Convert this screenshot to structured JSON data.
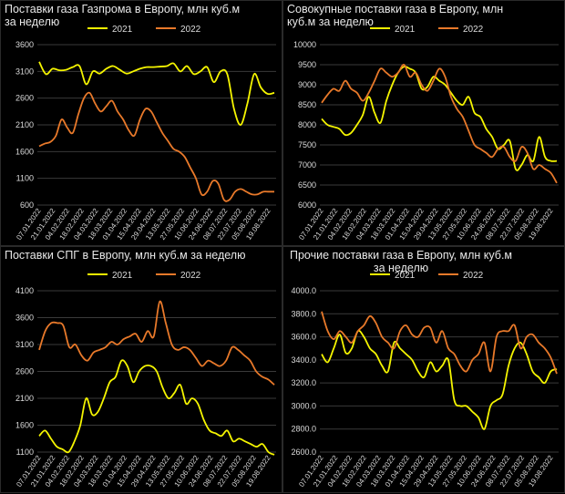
{
  "colors": {
    "y2021": "#f5f500",
    "y2022": "#e8792a",
    "grid": "#3a3a3a",
    "text": "#dcdcdc"
  },
  "x_labels": [
    "07.01.2022",
    "21.01.2022",
    "04.02.2022",
    "18.02.2022",
    "04.03.2022",
    "18.03.2022",
    "01.04.2022",
    "15.04.2022",
    "29.04.2022",
    "13.05.2022",
    "27.05.2022",
    "10.06.2022",
    "24.06.2022",
    "08.07.2022",
    "22.07.2022",
    "05.08.2022",
    "19.08.2022"
  ],
  "chart_data": [
    {
      "type": "line",
      "title": "Поставки газа Газпрома в Европу, млн куб.м за неделю",
      "yticks": [
        "600",
        "1100",
        "1600",
        "2100",
        "2600",
        "3100",
        "3600"
      ],
      "ylim": [
        600,
        3600
      ],
      "legend": {
        "position": "top-center",
        "entries": [
          "2021",
          "2022"
        ]
      },
      "series": [
        {
          "name": "2021",
          "values": [
            3280,
            3050,
            3150,
            3120,
            3130,
            3180,
            3200,
            2860,
            3100,
            3060,
            3150,
            3200,
            3130,
            3060,
            3100,
            3150,
            3180,
            3180,
            3190,
            3200,
            3250,
            3100,
            3200,
            3050,
            3100,
            3180,
            2900,
            3100,
            3050,
            2400,
            2100,
            2500,
            3050,
            2800,
            2680,
            2700
          ]
        },
        {
          "name": "2022",
          "values": [
            1700,
            1750,
            1780,
            1900,
            2200,
            2050,
            1950,
            2300,
            2600,
            2700,
            2500,
            2350,
            2450,
            2550,
            2350,
            2200,
            2000,
            1900,
            2200,
            2400,
            2350,
            2150,
            1950,
            1800,
            1650,
            1600,
            1500,
            1300,
            1100,
            800,
            850,
            1050,
            1000,
            700,
            700,
            850,
            900,
            850,
            800,
            800,
            850,
            850,
            850
          ]
        }
      ]
    },
    {
      "type": "line",
      "title": "Совокупные поставки газа в Европу, млн куб.м за неделю",
      "yticks": [
        "6000",
        "6500",
        "7000",
        "7500",
        "8000",
        "8500",
        "9000",
        "9500",
        "10000"
      ],
      "ylim": [
        6000,
        10000
      ],
      "legend": {
        "position": "top-center",
        "entries": [
          "2021",
          "2022"
        ]
      },
      "series": [
        {
          "name": "2021",
          "values": [
            8150,
            8000,
            7950,
            7900,
            7750,
            7800,
            8000,
            8250,
            8700,
            8300,
            8050,
            8600,
            9000,
            9300,
            9450,
            9400,
            9300,
            8900,
            8950,
            9200,
            9100,
            9000,
            8800,
            8600,
            8500,
            8700,
            8300,
            8200,
            7900,
            7700,
            7400,
            7500,
            7600,
            6900,
            7000,
            7250,
            7100,
            7700,
            7200,
            7100,
            7100
          ]
        },
        {
          "name": "2022",
          "values": [
            8550,
            8750,
            8900,
            8850,
            9100,
            8900,
            8800,
            8600,
            8800,
            9100,
            9400,
            9300,
            9200,
            9300,
            9500,
            9200,
            9300,
            9000,
            8850,
            9100,
            9400,
            9200,
            8700,
            8400,
            8200,
            7850,
            7500,
            7400,
            7300,
            7200,
            7400,
            7450,
            7200,
            7100,
            7450,
            7300,
            6900,
            7000,
            6900,
            6800,
            6550
          ]
        }
      ]
    },
    {
      "type": "line",
      "title": "Поставки СПГ в Европу, млн куб.м за неделю",
      "yticks": [
        "1100",
        "1600",
        "2100",
        "2600",
        "3100",
        "3600",
        "4100"
      ],
      "ylim": [
        1100,
        4100
      ],
      "legend": {
        "position": "top-center",
        "entries": [
          "2021",
          "2022"
        ]
      },
      "series": [
        {
          "name": "2021",
          "values": [
            1400,
            1500,
            1350,
            1200,
            1150,
            1100,
            1300,
            1600,
            2100,
            1800,
            1850,
            2100,
            2400,
            2500,
            2800,
            2700,
            2400,
            2600,
            2700,
            2700,
            2600,
            2300,
            2100,
            2200,
            2350,
            2000,
            2100,
            2000,
            1700,
            1500,
            1450,
            1400,
            1500,
            1300,
            1350,
            1300,
            1250,
            1200,
            1250,
            1100,
            1050
          ]
        },
        {
          "name": "2022",
          "values": [
            3000,
            3350,
            3500,
            3500,
            3450,
            3050,
            3100,
            2900,
            2800,
            2950,
            3000,
            3050,
            3150,
            3100,
            3200,
            3250,
            3300,
            3150,
            3350,
            3250,
            3900,
            3500,
            3100,
            3000,
            3050,
            3000,
            2850,
            2700,
            2800,
            2750,
            2700,
            2800,
            3050,
            3000,
            2900,
            2800,
            2600,
            2500,
            2450,
            2350
          ]
        }
      ]
    },
    {
      "type": "line",
      "title": "Прочие поставки газа в Европу, млн куб.м за неделю",
      "yticks": [
        "2600.0",
        "2800.0",
        "3000.0",
        "3200.0",
        "3400.0",
        "3600.0",
        "3800.0",
        "4000.0"
      ],
      "ylim": [
        2600,
        4000
      ],
      "legend": {
        "position": "top-center",
        "entries": [
          "2021",
          "2022"
        ]
      },
      "series": [
        {
          "name": "2021",
          "values": [
            3450,
            3380,
            3500,
            3620,
            3460,
            3500,
            3650,
            3600,
            3500,
            3450,
            3350,
            3300,
            3550,
            3500,
            3450,
            3400,
            3300,
            3250,
            3380,
            3300,
            3350,
            3400,
            3050,
            3000,
            3000,
            2950,
            2900,
            2800,
            3000,
            3050,
            3100,
            3350,
            3500,
            3550,
            3450,
            3300,
            3250,
            3200,
            3300,
            3320
          ]
        },
        {
          "name": "2022",
          "values": [
            3820,
            3650,
            3580,
            3650,
            3600,
            3550,
            3650,
            3700,
            3780,
            3720,
            3600,
            3550,
            3500,
            3650,
            3700,
            3620,
            3600,
            3680,
            3680,
            3550,
            3650,
            3500,
            3450,
            3350,
            3300,
            3400,
            3450,
            3550,
            3300,
            3600,
            3650,
            3650,
            3700,
            3500,
            3600,
            3620,
            3550,
            3500,
            3420,
            3280
          ]
        }
      ]
    }
  ]
}
